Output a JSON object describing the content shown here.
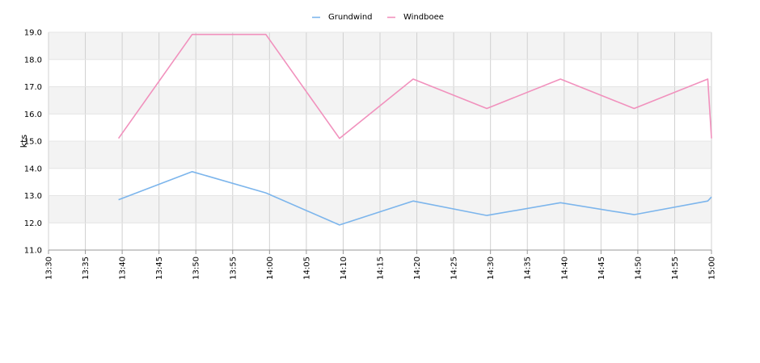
{
  "chart_data": {
    "type": "line",
    "ylabel": "kts",
    "ylim": [
      11.0,
      19.0
    ],
    "y_ticks": [
      "11.0",
      "12.0",
      "13.0",
      "14.0",
      "15.0",
      "16.0",
      "17.0",
      "18.0",
      "19.0"
    ],
    "x_range": [
      "13:30",
      "15:00"
    ],
    "x_ticks": [
      "13:30",
      "13:35",
      "13:40",
      "13:45",
      "13:50",
      "13:55",
      "14:00",
      "14:05",
      "14:10",
      "14:15",
      "14:20",
      "14:25",
      "14:30",
      "14:35",
      "14:40",
      "14:45",
      "14:50",
      "14:55",
      "15:00"
    ],
    "grid": true,
    "legend_position": "top-center",
    "series": [
      {
        "name": "Grundwind",
        "color": "#7cb5ec",
        "points": [
          [
            "13:39:30",
            12.85
          ],
          [
            "13:49:30",
            13.88
          ],
          [
            "13:59:30",
            13.1
          ],
          [
            "14:09:30",
            11.92
          ],
          [
            "14:19:30",
            12.8
          ],
          [
            "14:29:30",
            12.27
          ],
          [
            "14:39:30",
            12.74
          ],
          [
            "14:49:30",
            12.3
          ],
          [
            "14:59:30",
            12.8
          ],
          [
            "15:00:00",
            12.95
          ]
        ]
      },
      {
        "name": "Windboee",
        "color": "#f191bd",
        "points": [
          [
            "13:39:30",
            15.1
          ],
          [
            "13:49:30",
            18.92
          ],
          [
            "13:59:30",
            18.92
          ],
          [
            "14:09:30",
            15.1
          ],
          [
            "14:19:30",
            17.28
          ],
          [
            "14:29:30",
            16.2
          ],
          [
            "14:39:30",
            17.28
          ],
          [
            "14:49:30",
            16.2
          ],
          [
            "14:59:30",
            17.28
          ],
          [
            "15:00:00",
            15.1
          ]
        ]
      }
    ]
  }
}
